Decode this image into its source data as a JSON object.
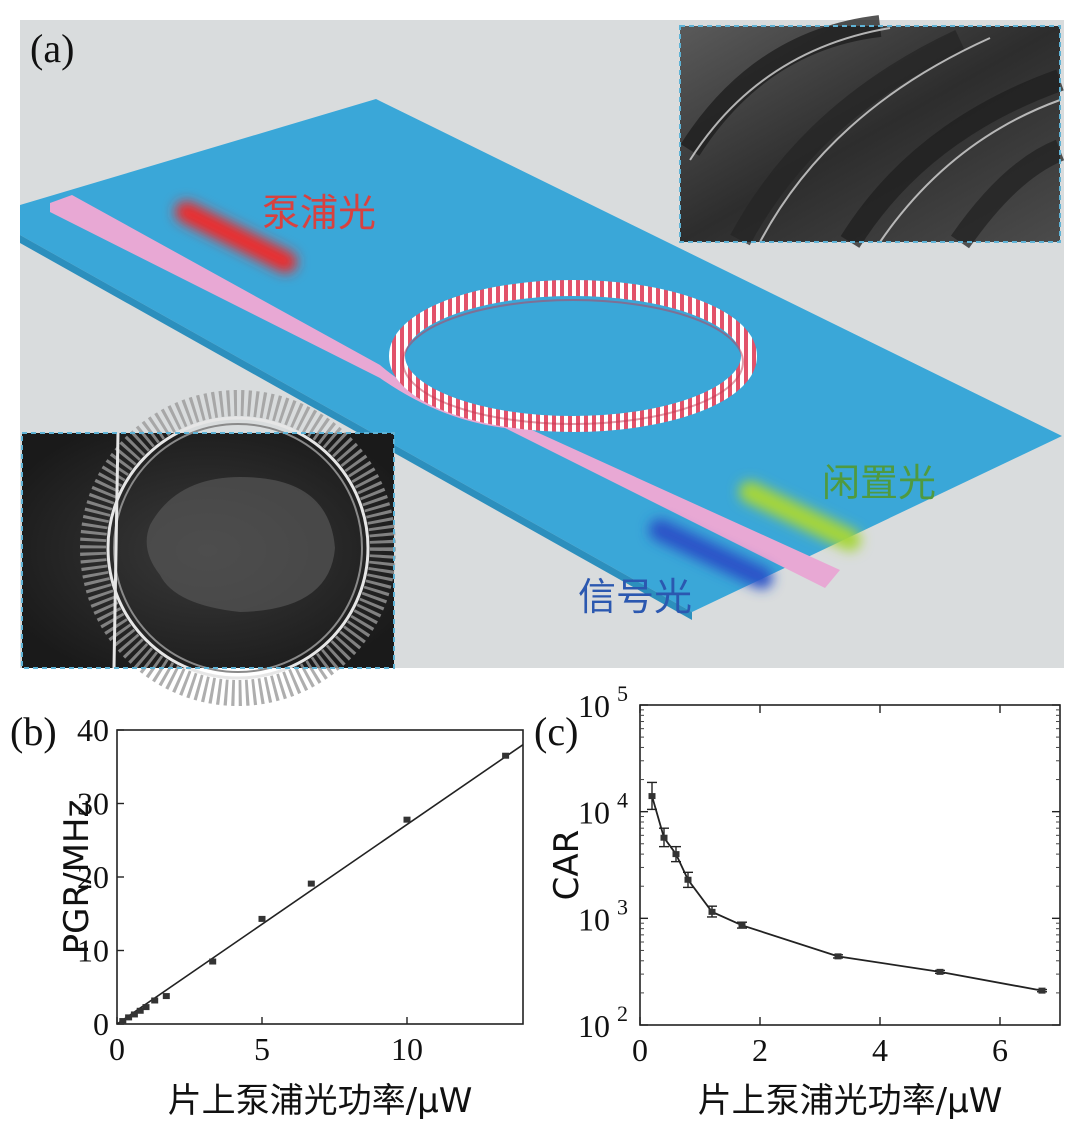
{
  "panel_a": {
    "label": "(a)",
    "pump_label": "泵浦光",
    "idler_label": "闲置光",
    "signal_label": "信号光",
    "colors": {
      "background": "#d9dcdd",
      "substrate": "#3aa7d8",
      "waveguide": "#e8a8d4",
      "ring": "#e2526a",
      "pump": "#ee2a2a",
      "idler": "#a6d63a",
      "signal": "#2a52c8",
      "pump_text": "#d8413f",
      "idler_text": "#4f9a3f",
      "signal_text": "#2b58b0"
    }
  },
  "chart_data": [
    {
      "panel": "(b)",
      "type": "line",
      "xlabel": "片上泵浦光功率/μW",
      "ylabel": "PGR/MHz",
      "xlim": [
        0,
        14
      ],
      "ylim": [
        0,
        40
      ],
      "xticks": [
        0,
        5,
        10
      ],
      "yticks": [
        0,
        10,
        20,
        30,
        40
      ],
      "points": {
        "x": [
          0.2,
          0.4,
          0.6,
          0.8,
          1.0,
          1.3,
          1.7,
          3.3,
          5.0,
          6.7,
          10.0,
          13.4
        ],
        "y": [
          0.4,
          0.9,
          1.3,
          1.8,
          2.3,
          3.2,
          3.8,
          8.5,
          14.3,
          19.1,
          27.8,
          36.5
        ]
      },
      "fit_line": {
        "x": [
          0,
          14
        ],
        "y": [
          0,
          38
        ]
      },
      "grid": false
    },
    {
      "panel": "(c)",
      "type": "line",
      "xlabel": "片上泵浦光功率/μW",
      "ylabel": "CAR",
      "xlim": [
        0,
        7
      ],
      "ylim": [
        100,
        100000
      ],
      "yscale": "log",
      "xticks": [
        0,
        2,
        4,
        6
      ],
      "yticks": [
        {
          "base": "10",
          "exp": "2",
          "value": 100
        },
        {
          "base": "10",
          "exp": "3",
          "value": 1000
        },
        {
          "base": "10",
          "exp": "4",
          "value": 10000
        },
        {
          "base": "10",
          "exp": "5",
          "value": 100000
        }
      ],
      "points": {
        "x": [
          0.2,
          0.4,
          0.6,
          0.8,
          1.2,
          1.7,
          3.3,
          5.0,
          6.7
        ],
        "y": [
          14000,
          5700,
          4000,
          2300,
          1150,
          860,
          440,
          315,
          210
        ],
        "err_low": [
          10500,
          4700,
          3400,
          1950,
          1030,
          810,
          425,
          305,
          205
        ],
        "err_high": [
          18800,
          7000,
          4700,
          2700,
          1300,
          920,
          455,
          325,
          215
        ]
      },
      "grid": false
    }
  ]
}
